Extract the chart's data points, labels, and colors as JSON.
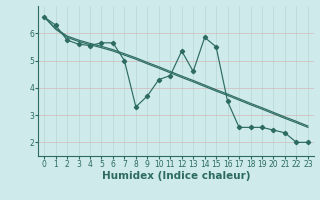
{
  "xlabel": "Humidex (Indice chaleur)",
  "ylabel": "",
  "bg_color": "#ceeaea",
  "line_color": "#2d6b62",
  "x_data": [
    0,
    1,
    2,
    3,
    4,
    5,
    6,
    7,
    8,
    9,
    10,
    11,
    12,
    13,
    14,
    15,
    16,
    17,
    18,
    19,
    20,
    21,
    22,
    23
  ],
  "y_main": [
    6.6,
    6.3,
    5.75,
    5.6,
    5.55,
    5.65,
    5.65,
    5.0,
    3.3,
    3.7,
    4.3,
    4.45,
    5.35,
    4.6,
    5.85,
    5.5,
    3.5,
    2.55,
    2.55,
    2.55,
    2.45,
    2.35,
    2.0,
    2.0
  ],
  "y_trend1": [
    6.6,
    6.15,
    5.85,
    5.7,
    5.58,
    5.47,
    5.35,
    5.2,
    5.05,
    4.88,
    4.72,
    4.55,
    4.38,
    4.22,
    4.05,
    3.88,
    3.72,
    3.55,
    3.38,
    3.22,
    3.05,
    2.88,
    2.72,
    2.55
  ],
  "y_trend2": [
    6.6,
    6.18,
    5.9,
    5.75,
    5.63,
    5.52,
    5.4,
    5.25,
    5.1,
    4.93,
    4.77,
    4.6,
    4.43,
    4.27,
    4.1,
    3.93,
    3.77,
    3.6,
    3.43,
    3.27,
    3.1,
    2.93,
    2.77,
    2.6
  ],
  "xlim": [
    -0.5,
    23.5
  ],
  "ylim": [
    1.5,
    7.0
  ],
  "yticks": [
    2,
    3,
    4,
    5,
    6
  ],
  "xticks": [
    0,
    1,
    2,
    3,
    4,
    5,
    6,
    7,
    8,
    9,
    10,
    11,
    12,
    13,
    14,
    15,
    16,
    17,
    18,
    19,
    20,
    21,
    22,
    23
  ],
  "grid_color": "#b8d8d4",
  "grid_color2": "#d4b8b8",
  "tick_fontsize": 5.5,
  "xlabel_fontsize": 7.5
}
